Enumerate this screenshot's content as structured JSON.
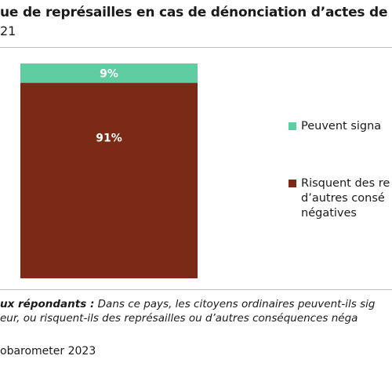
{
  "title_fragment": "ue de représailles en cas de dénonciation d’actes de c",
  "subtitle_fragment": "21",
  "note": {
    "bold_fragment": "ux répondants :",
    "line1_fragment": " Dans ce pays, les citoyens ordinaires peuvent-ils sig",
    "line2_fragment": "eur, ou risquent-ils des représailles ou d’autres conséquences néga"
  },
  "source_fragment": "obarometer 2023",
  "colors": {
    "teal": "#5fcca1",
    "brown": "#7a2a15"
  },
  "chart_data": {
    "type": "bar",
    "stacked": true,
    "percent": true,
    "categories": [
      ""
    ],
    "series": [
      {
        "name": "Peuvent signa",
        "values": [
          9
        ],
        "color": "#5fcca1",
        "label": "9%"
      },
      {
        "name": "Risquent des re\nd’autres consé\nnégatives",
        "values": [
          91
        ],
        "color": "#7a2a15",
        "label": "91%"
      }
    ],
    "ylim": [
      0,
      100
    ],
    "grid": false,
    "legend": "right"
  }
}
